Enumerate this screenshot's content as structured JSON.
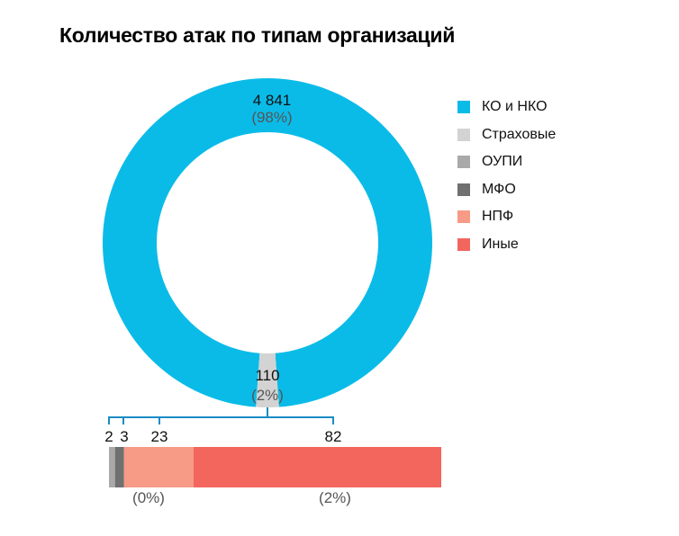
{
  "title": "Количество атак по типам организаций",
  "chart_data": {
    "type": "pie",
    "variant": "donut with breakdown bar",
    "title": "Количество атак по типам организаций",
    "slices": [
      {
        "name": "КО и НКО",
        "value": 4841,
        "label": "4 841",
        "pct_label": "(98%)",
        "color": "#0abbe8"
      },
      {
        "name": "Страховые",
        "value": 110,
        "label": "110",
        "pct_label": "(2%)",
        "color": "#d3d3d3"
      }
    ],
    "breakdown": {
      "of": "Страховые",
      "segments": [
        {
          "name": "ОУПИ",
          "value": 2,
          "label": "2",
          "color": "#a9a9a9"
        },
        {
          "name": "МФО",
          "value": 3,
          "label": "3",
          "color": "#707070"
        },
        {
          "name": "НПФ",
          "value": 23,
          "label": "23",
          "color": "#f79a86"
        },
        {
          "name": "Иные",
          "value": 82,
          "label": "82",
          "color": "#f2665e"
        }
      ],
      "pct_labels": [
        {
          "under": "НПФ",
          "text": "(0%)"
        },
        {
          "under": "Иные",
          "text": "(2%)"
        }
      ]
    },
    "legend": {
      "placement": "right",
      "items": [
        {
          "label": "КО и НКО",
          "color": "#0abbe8"
        },
        {
          "label": "Страховые",
          "color": "#d3d3d3"
        },
        {
          "label": "ОУПИ",
          "color": "#a9a9a9"
        },
        {
          "label": "МФО",
          "color": "#707070"
        },
        {
          "label": "НПФ",
          "color": "#f79a86"
        },
        {
          "label": "Иные",
          "color": "#f2665e"
        }
      ]
    },
    "bracket_color": "#1a8cc4"
  }
}
